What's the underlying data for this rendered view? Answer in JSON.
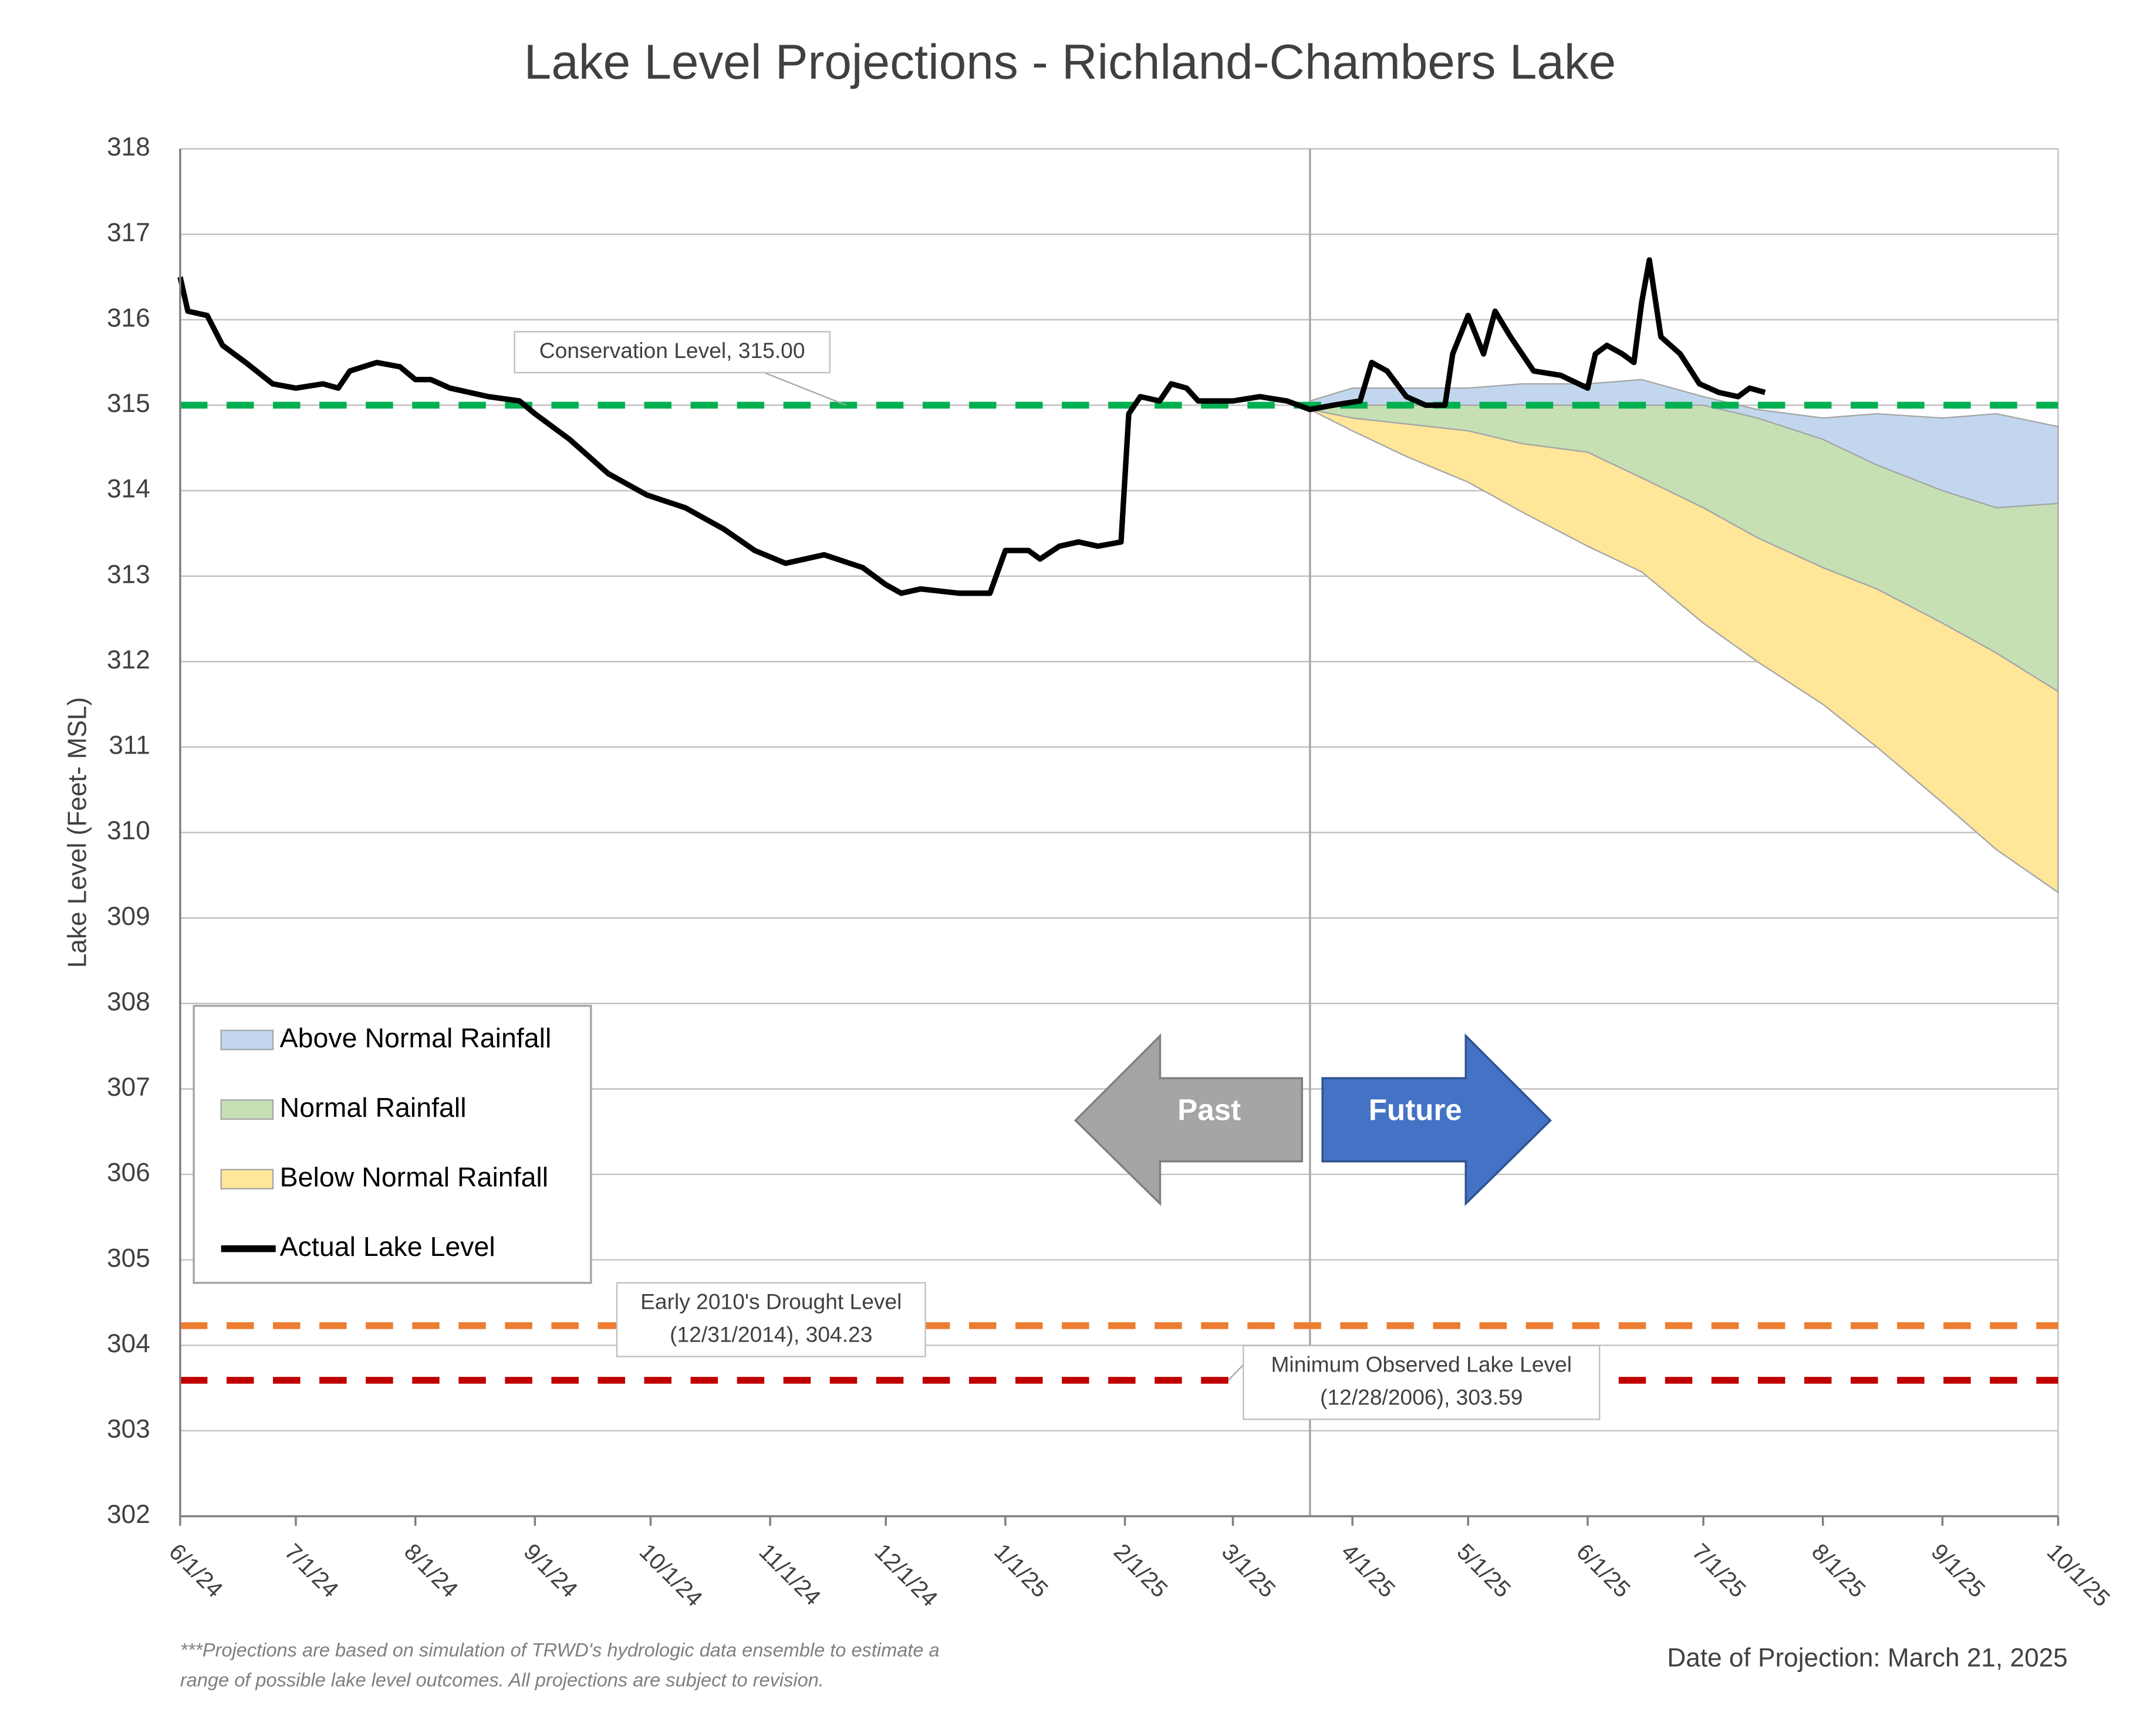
{
  "chart_data": {
    "type": "range-area-line",
    "title": "Lake Level Projections - Richland-Chambers Lake",
    "y_label": "Lake Level (Feet- MSL)",
    "ylim": [
      302,
      318
    ],
    "yticks": [
      302,
      303,
      304,
      305,
      306,
      307,
      308,
      309,
      310,
      311,
      312,
      313,
      314,
      315,
      316,
      317,
      318
    ],
    "xlim": [
      "2024-06-01",
      "2025-10-01"
    ],
    "xticks": [
      {
        "value": "2024-06-01",
        "label": "6/1/24"
      },
      {
        "value": "2024-07-01",
        "label": "7/1/24"
      },
      {
        "value": "2024-08-01",
        "label": "8/1/24"
      },
      {
        "value": "2024-09-01",
        "label": "9/1/24"
      },
      {
        "value": "2024-10-01",
        "label": "10/1/24"
      },
      {
        "value": "2024-11-01",
        "label": "11/1/24"
      },
      {
        "value": "2024-12-01",
        "label": "12/1/24"
      },
      {
        "value": "2025-01-01",
        "label": "1/1/25"
      },
      {
        "value": "2025-02-01",
        "label": "2/1/25"
      },
      {
        "value": "2025-03-01",
        "label": "3/1/25"
      },
      {
        "value": "2025-04-01",
        "label": "4/1/25"
      },
      {
        "value": "2025-05-01",
        "label": "5/1/25"
      },
      {
        "value": "2025-06-01",
        "label": "6/1/25"
      },
      {
        "value": "2025-07-01",
        "label": "7/1/25"
      },
      {
        "value": "2025-08-01",
        "label": "8/1/25"
      },
      {
        "value": "2025-09-01",
        "label": "9/1/25"
      },
      {
        "value": "2025-10-01",
        "label": "10/1/25"
      }
    ],
    "grid": true,
    "divider_x": "2025-03-21",
    "bands_x": [
      "2025-03-21",
      "2025-04-01",
      "2025-04-15",
      "2025-05-01",
      "2025-05-15",
      "2025-06-01",
      "2025-06-15",
      "2025-07-01",
      "2025-07-15",
      "2025-08-01",
      "2025-08-15",
      "2025-09-01",
      "2025-09-15",
      "2025-10-01"
    ],
    "bands": [
      {
        "name": "Above Normal Rainfall",
        "color": "#c2d7ee",
        "high": [
          315.05,
          315.2,
          315.2,
          315.2,
          315.25,
          315.25,
          315.3,
          315.1,
          314.95,
          314.85,
          314.9,
          314.85,
          314.9,
          314.75
        ],
        "low": [
          315.0,
          315.0,
          315.0,
          315.0,
          315.0,
          315.0,
          315.0,
          315.0,
          314.85,
          314.6,
          314.3,
          314.0,
          313.8,
          313.85
        ]
      },
      {
        "name": "Normal Rainfall",
        "color": "#c6e0b4",
        "high": [
          315.0,
          315.0,
          315.0,
          315.0,
          315.0,
          315.0,
          315.0,
          315.0,
          314.85,
          314.6,
          314.3,
          314.0,
          313.8,
          313.85
        ],
        "low": [
          314.95,
          314.85,
          314.78,
          314.7,
          314.55,
          314.45,
          314.15,
          313.8,
          313.45,
          313.1,
          312.85,
          312.45,
          312.1,
          311.65
        ]
      },
      {
        "name": "Below Normal Rainfall",
        "color": "#ffe699",
        "high": [
          314.95,
          314.85,
          314.78,
          314.7,
          314.55,
          314.45,
          314.15,
          313.8,
          313.45,
          313.1,
          312.85,
          312.45,
          312.1,
          311.65
        ],
        "low": [
          314.95,
          314.7,
          314.4,
          314.1,
          313.75,
          313.35,
          313.05,
          312.45,
          312.0,
          311.5,
          311.0,
          310.35,
          309.8,
          309.3
        ]
      }
    ],
    "line": {
      "name": "Actual Lake Level",
      "color": "#000000",
      "x": [
        "2024-06-01",
        "2024-06-03",
        "2024-06-08",
        "2024-06-12",
        "2024-06-18",
        "2024-06-25",
        "2024-07-01",
        "2024-07-08",
        "2024-07-12",
        "2024-07-15",
        "2024-07-22",
        "2024-07-28",
        "2024-08-01",
        "2024-08-05",
        "2024-08-10",
        "2024-08-20",
        "2024-08-28",
        "2024-09-01",
        "2024-09-10",
        "2024-09-20",
        "2024-09-30",
        "2024-10-10",
        "2024-10-20",
        "2024-10-28",
        "2024-11-05",
        "2024-11-10",
        "2024-11-15",
        "2024-11-25",
        "2024-12-01",
        "2024-12-05",
        "2024-12-10",
        "2024-12-20",
        "2024-12-28",
        "2025-01-01",
        "2025-01-07",
        "2025-01-10",
        "2025-01-15",
        "2025-01-20",
        "2025-01-25",
        "2025-01-31",
        "2025-02-02",
        "2025-02-05",
        "2025-02-10",
        "2025-02-13",
        "2025-02-17",
        "2025-02-20",
        "2025-02-25",
        "2025-03-01",
        "2025-03-08",
        "2025-03-15",
        "2025-03-21",
        "2025-03-27",
        "2025-04-03",
        "2025-04-06",
        "2025-04-10",
        "2025-04-15",
        "2025-04-20",
        "2025-04-25",
        "2025-04-27",
        "2025-05-01",
        "2025-05-05",
        "2025-05-08",
        "2025-05-12",
        "2025-05-18",
        "2025-05-25",
        "2025-06-01",
        "2025-06-03",
        "2025-06-06",
        "2025-06-10",
        "2025-06-13",
        "2025-06-15",
        "2025-06-17",
        "2025-06-20",
        "2025-06-25",
        "2025-06-30",
        "2025-07-05",
        "2025-07-10",
        "2025-07-13",
        "2025-07-17"
      ],
      "values": [
        316.5,
        316.1,
        316.05,
        315.7,
        315.5,
        315.25,
        315.2,
        315.25,
        315.2,
        315.4,
        315.5,
        315.45,
        315.3,
        315.3,
        315.2,
        315.1,
        315.05,
        314.9,
        314.6,
        314.2,
        313.95,
        313.8,
        313.55,
        313.3,
        313.15,
        313.2,
        313.25,
        313.1,
        312.9,
        312.8,
        312.85,
        312.8,
        312.8,
        313.3,
        313.3,
        313.2,
        313.35,
        313.4,
        313.35,
        313.4,
        314.9,
        315.1,
        315.05,
        315.25,
        315.2,
        315.05,
        315.05,
        315.05,
        315.1,
        315.05,
        314.95,
        315.0,
        315.05,
        315.5,
        315.4,
        315.1,
        315.0,
        315.0,
        315.6,
        316.05,
        315.6,
        316.1,
        315.8,
        315.4,
        315.35,
        315.2,
        315.6,
        315.7,
        315.6,
        315.5,
        316.2,
        316.7,
        315.8,
        315.6,
        315.25,
        315.15,
        315.1,
        315.2,
        315.15
      ]
    },
    "reference_lines": [
      {
        "value": 315.0,
        "color": "#00b050",
        "label": [
          "Conservation Level, 315.00"
        ]
      },
      {
        "value": 304.23,
        "color": "#ed7d31",
        "label": [
          "Early 2010's Drought Level",
          "(12/31/2014), 304.23"
        ]
      },
      {
        "value": 303.59,
        "color": "#c00000",
        "label": [
          "Minimum Observed Lake Level",
          "(12/28/2006), 303.59"
        ]
      }
    ],
    "arrows": [
      "Past",
      "Future"
    ],
    "footnote": [
      "***Projections are based on simulation of TRWD's hydrologic data ensemble to estimate a",
      "range of possible lake level outcomes.  All projections are subject to revision."
    ],
    "projection_note": "Date of Projection: March 21, 2025"
  }
}
